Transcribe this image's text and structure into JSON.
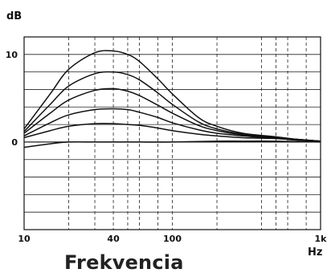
{
  "chart_data": {
    "type": "line",
    "title": "",
    "xlabel": "Frekvencia",
    "xunit": "Hz",
    "yunit": "dB",
    "xscale": "log",
    "xlim": [
      10,
      1000
    ],
    "ylim": [
      -10,
      12
    ],
    "x_tick_labels": [
      {
        "value": 10,
        "label": "10"
      },
      {
        "value": 40,
        "label": "40"
      },
      {
        "value": 100,
        "label": "100"
      },
      {
        "value": 1000,
        "label": "1k"
      }
    ],
    "y_tick_labels": [
      {
        "value": 10,
        "label": "10"
      },
      {
        "value": 0,
        "label": "0"
      }
    ],
    "grid": "horizontal solid every 2 dB, vertical dashed at log decades",
    "series": [
      {
        "values": [
          [
            10,
            1.5
          ],
          [
            15,
            5.5
          ],
          [
            20,
            8.3
          ],
          [
            30,
            10.2
          ],
          [
            40,
            10.4
          ],
          [
            50,
            10.0
          ],
          [
            60,
            9.2
          ],
          [
            80,
            7.2
          ],
          [
            100,
            5.5
          ],
          [
            150,
            2.8
          ],
          [
            200,
            1.8
          ],
          [
            300,
            1.0
          ],
          [
            500,
            0.6
          ],
          [
            700,
            0.3
          ],
          [
            1000,
            0.1
          ]
        ]
      },
      {
        "values": [
          [
            10,
            1.2
          ],
          [
            15,
            4.3
          ],
          [
            20,
            6.4
          ],
          [
            30,
            7.8
          ],
          [
            40,
            8.0
          ],
          [
            50,
            7.7
          ],
          [
            60,
            7.1
          ],
          [
            80,
            5.6
          ],
          [
            100,
            4.3
          ],
          [
            150,
            2.3
          ],
          [
            200,
            1.5
          ],
          [
            300,
            0.9
          ],
          [
            500,
            0.5
          ],
          [
            700,
            0.3
          ],
          [
            1000,
            0.1
          ]
        ]
      },
      {
        "values": [
          [
            10,
            1.0
          ],
          [
            15,
            3.3
          ],
          [
            20,
            4.8
          ],
          [
            30,
            5.9
          ],
          [
            40,
            6.1
          ],
          [
            50,
            5.8
          ],
          [
            60,
            5.3
          ],
          [
            80,
            4.2
          ],
          [
            100,
            3.3
          ],
          [
            150,
            1.9
          ],
          [
            200,
            1.3
          ],
          [
            300,
            0.8
          ],
          [
            500,
            0.5
          ],
          [
            700,
            0.3
          ],
          [
            1000,
            0.1
          ]
        ]
      },
      {
        "values": [
          [
            10,
            0.7
          ],
          [
            15,
            2.2
          ],
          [
            20,
            3.1
          ],
          [
            30,
            3.7
          ],
          [
            40,
            3.8
          ],
          [
            50,
            3.7
          ],
          [
            60,
            3.4
          ],
          [
            80,
            2.8
          ],
          [
            100,
            2.2
          ],
          [
            150,
            1.4
          ],
          [
            200,
            1.0
          ],
          [
            300,
            0.7
          ],
          [
            500,
            0.4
          ],
          [
            700,
            0.3
          ],
          [
            1000,
            0.1
          ]
        ]
      },
      {
        "values": [
          [
            10,
            0.5
          ],
          [
            15,
            1.3
          ],
          [
            20,
            1.8
          ],
          [
            30,
            2.1
          ],
          [
            40,
            2.1
          ],
          [
            50,
            2.0
          ],
          [
            60,
            1.9
          ],
          [
            80,
            1.6
          ],
          [
            100,
            1.3
          ],
          [
            150,
            0.9
          ],
          [
            200,
            0.7
          ],
          [
            300,
            0.5
          ],
          [
            500,
            0.4
          ],
          [
            700,
            0.2
          ],
          [
            1000,
            0.1
          ]
        ]
      },
      {
        "values": [
          [
            10,
            -0.6
          ],
          [
            15,
            -0.2
          ],
          [
            20,
            0.0
          ],
          [
            30,
            0.0
          ],
          [
            40,
            0.0
          ],
          [
            60,
            0.0
          ],
          [
            100,
            0.0
          ],
          [
            200,
            0.1
          ],
          [
            300,
            0.1
          ],
          [
            500,
            0.1
          ],
          [
            700,
            0.05
          ],
          [
            1000,
            0.0
          ]
        ]
      }
    ]
  }
}
